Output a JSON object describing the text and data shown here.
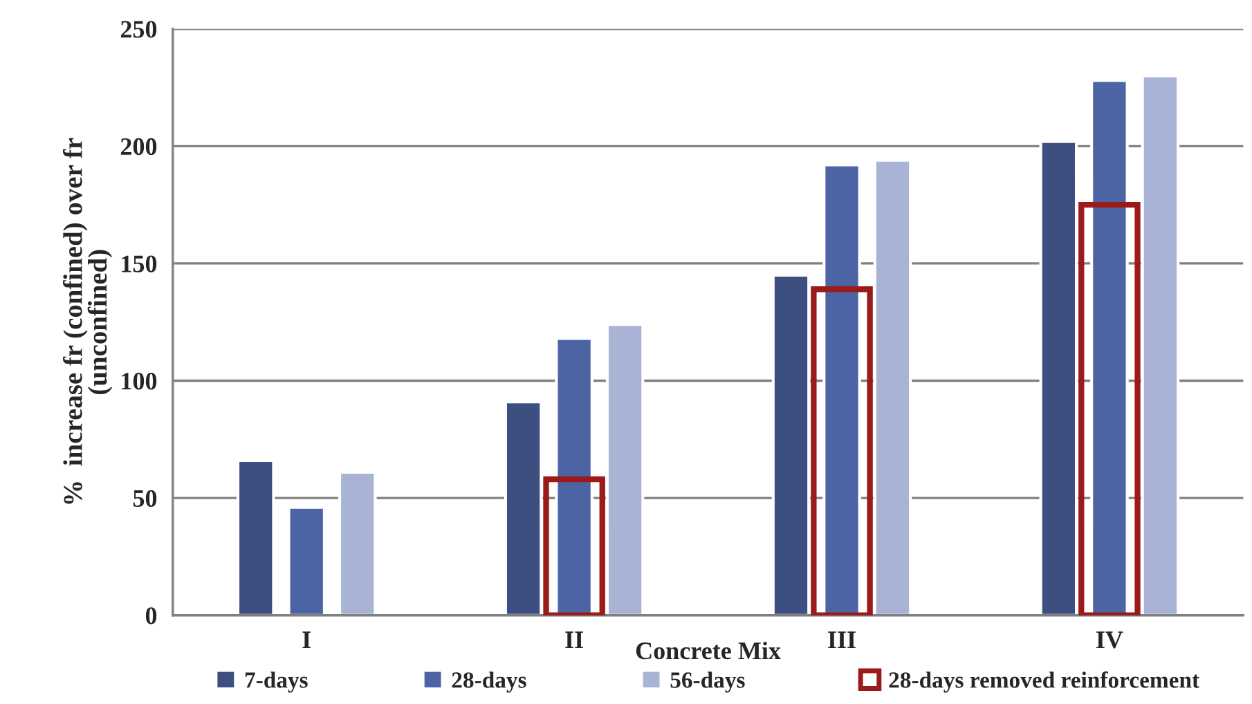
{
  "chart_data": {
    "type": "bar",
    "xlabel": "Concrete Mix",
    "ylabel": "%  increase fr (confined) over fr\n(unconfined)",
    "categories": [
      "I",
      "II",
      "III",
      "IV"
    ],
    "series": [
      {
        "name": "7-days",
        "color": "#3d4f80",
        "values": [
          66,
          91,
          145,
          202
        ]
      },
      {
        "name": "28-days",
        "color": "#4c64a4",
        "values": [
          46,
          118,
          192,
          228
        ]
      },
      {
        "name": "56-days",
        "color": "#a9b3d6",
        "values": [
          61,
          124,
          194,
          230
        ]
      },
      {
        "name": "28-days removed reinforcement",
        "type": "bar",
        "line_style": "solid",
        "color": "#9b1b1b",
        "values": [
          null,
          58,
          139,
          175
        ]
      }
    ],
    "ylim": [
      0,
      250
    ],
    "yticks": [
      0,
      50,
      100,
      150,
      200,
      250
    ],
    "grid": "y",
    "legend": "bottom"
  }
}
